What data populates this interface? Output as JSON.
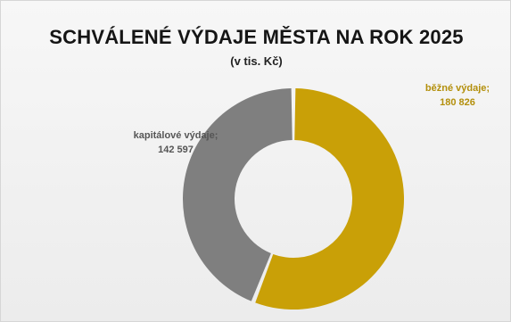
{
  "colors": {
    "bezne": "#c9a007",
    "kapitalove": "#7f7f7f",
    "label_bezne": "#b38f0b",
    "label_kapitalove": "#555555"
  },
  "chart_data": {
    "type": "pie",
    "variant": "doughnut",
    "title": "SCHVÁLENÉ VÝDAJE MĚSTA NA ROK 2025",
    "subtitle": "(v tis. Kč)",
    "slices": [
      {
        "name": "běžné výdaje",
        "value": 180826,
        "label_line1": "běžné výdaje;",
        "label_line2": "180 826"
      },
      {
        "name": "kapitálové výdaje",
        "value": 142597,
        "label_line1": "kapitálové výdaje;",
        "label_line2": "142 597"
      }
    ],
    "legend": "none"
  }
}
